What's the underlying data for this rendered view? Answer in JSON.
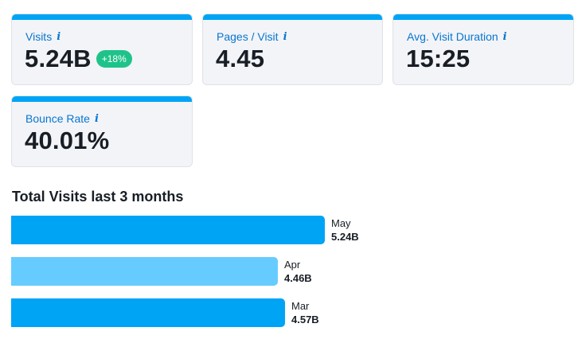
{
  "metrics": [
    {
      "label": "Visits",
      "value": "5.24B",
      "badge": "+18%"
    },
    {
      "label": "Pages / Visit",
      "value": "4.45"
    },
    {
      "label": "Avg. Visit Duration",
      "value": "15:25"
    },
    {
      "label": "Bounce Rate",
      "value": "40.01%"
    }
  ],
  "info_glyph": "i",
  "colors": {
    "accent": "#00a4f5",
    "light_bar": "#66ccff",
    "badge": "#1fc38a",
    "label": "#0676d1"
  },
  "chart_data": {
    "type": "bar",
    "orientation": "horizontal",
    "title": "Total Visits last 3 months",
    "categories": [
      "May",
      "Apr",
      "Mar"
    ],
    "values": [
      5.24,
      4.46,
      4.57
    ],
    "value_labels": [
      "5.24B",
      "4.46B",
      "4.57B"
    ],
    "unit": "B visits",
    "xlim": [
      0,
      5.24
    ]
  }
}
